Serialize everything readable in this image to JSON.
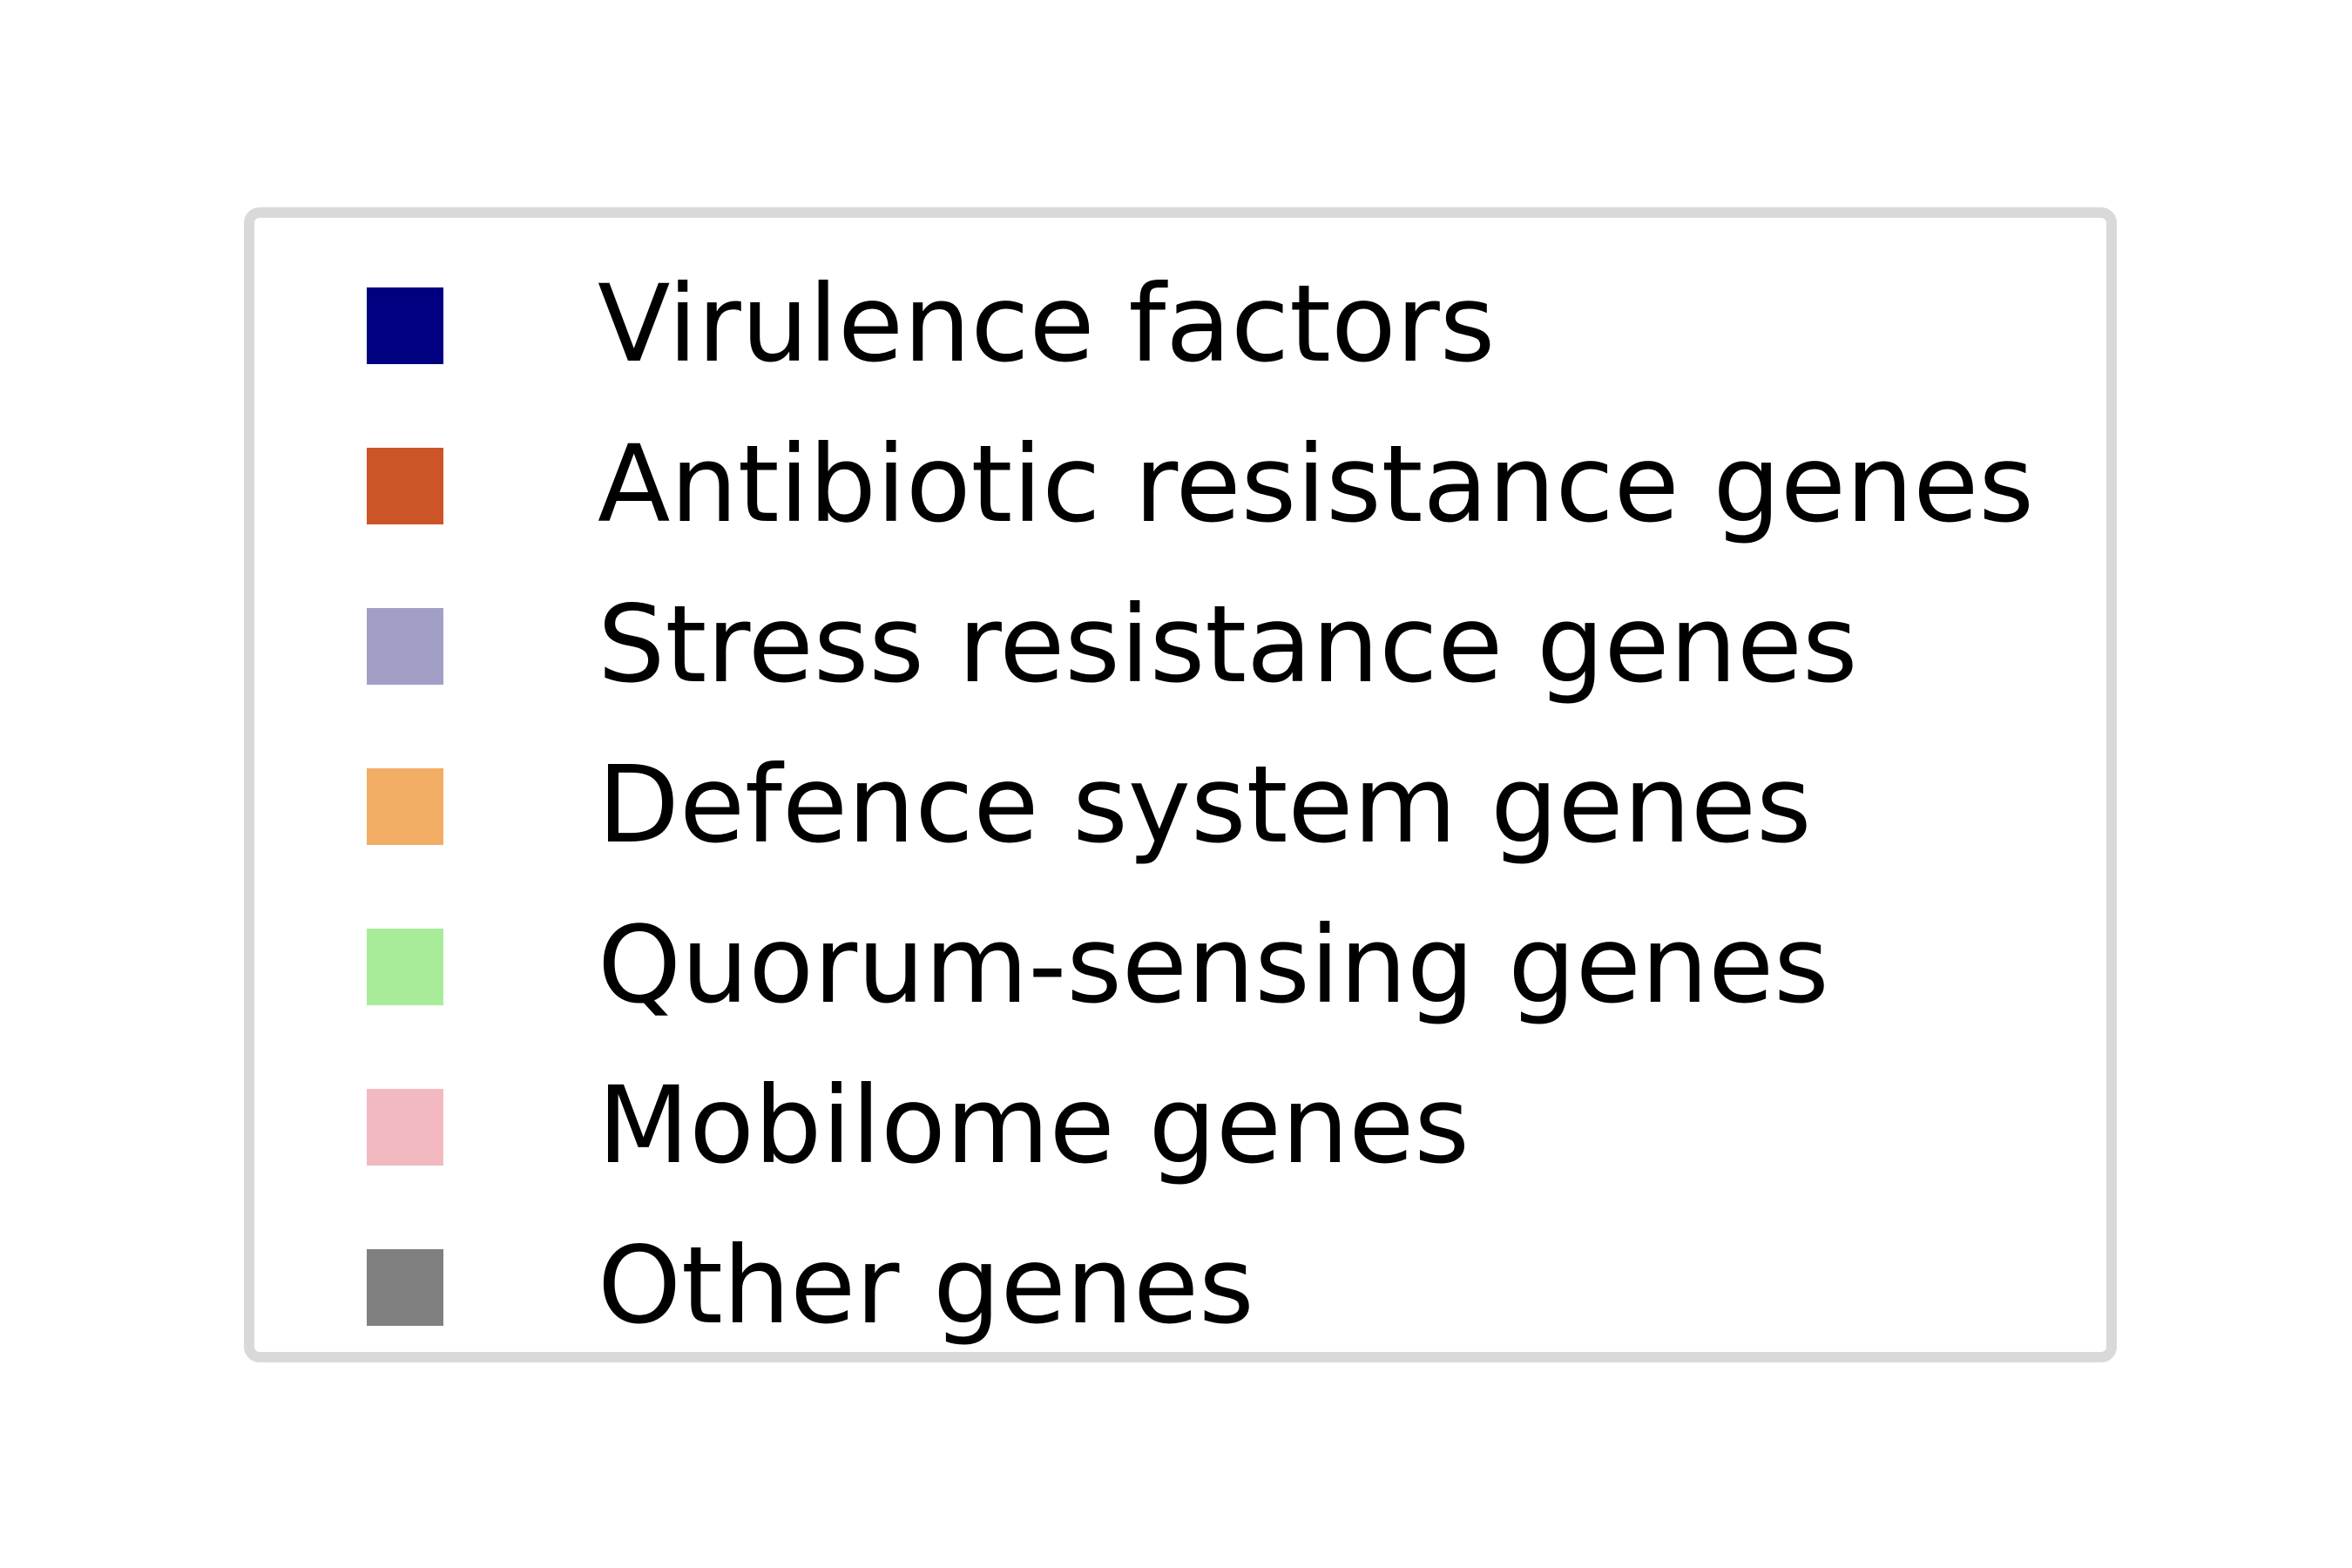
{
  "chart_data": {
    "type": "legend",
    "legend": [
      {
        "label": "Virulence factors",
        "color": "#000080"
      },
      {
        "label": "Antibiotic resistance genes",
        "color": "#cc5527"
      },
      {
        "label": "Stress resistance genes",
        "color": "#a29fc6"
      },
      {
        "label": "Defence system genes",
        "color": "#f2ad64"
      },
      {
        "label": "Quorum-sensing genes",
        "color": "#a8ec9a"
      },
      {
        "label": "Mobilome genes",
        "color": "#f3b9c1"
      },
      {
        "label": "Other genes",
        "color": "#808080"
      }
    ]
  }
}
